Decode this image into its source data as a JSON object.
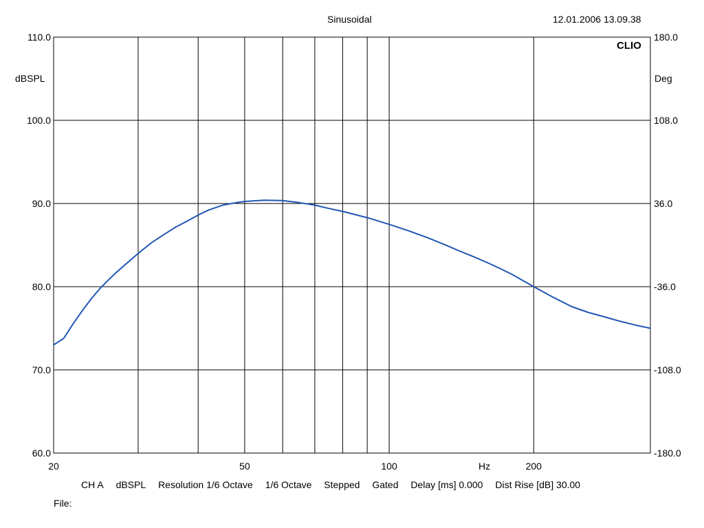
{
  "header": {
    "title": "Sinusoidal",
    "timestamp": "12.01.2006 13.09.38",
    "brand": "CLIO"
  },
  "axes": {
    "left_unit": "dBSPL",
    "right_unit": "Deg",
    "x_unit": "Hz"
  },
  "footer": {
    "channel": "CH A",
    "unit": "dBSPL",
    "resolution": "Resolution 1/6 Octave",
    "octave": "1/6 Octave",
    "mode": "Stepped",
    "gating": "Gated",
    "delay": "Delay [ms] 0.000",
    "dist_rise": "Dist Rise [dB] 30.00",
    "file_label": "File:"
  },
  "chart_data": {
    "type": "line",
    "title": "Sinusoidal",
    "xlabel": "Hz",
    "ylabel": "dBSPL",
    "y2label": "Deg",
    "xscale": "log",
    "xlim": [
      20,
      350
    ],
    "ylim": [
      60,
      110
    ],
    "y2lim": [
      -180,
      180
    ],
    "grid": true,
    "x_ticks": [
      20,
      50,
      100,
      200
    ],
    "x_tick_labels": [
      "20",
      "50",
      "100",
      "200"
    ],
    "x_gridlines": [
      30,
      40,
      50,
      60,
      70,
      80,
      90,
      100,
      200
    ],
    "y_ticks": [
      60,
      70,
      80,
      90,
      100,
      110
    ],
    "y_tick_labels": [
      "60.0",
      "70.0",
      "80.0",
      "90.0",
      "100.0",
      "110.0"
    ],
    "y2_ticks": [
      -180,
      -108,
      -36,
      36,
      108,
      180
    ],
    "y2_tick_labels": [
      "-180.0",
      "-108.0",
      "-36.0",
      "36.0",
      "108.0",
      "180.0"
    ],
    "series": [
      {
        "color": "#1f55b4",
        "x": [
          20,
          21,
          22,
          23,
          24,
          25,
          26,
          27,
          28,
          30,
          32,
          34,
          36,
          38,
          40,
          42,
          45,
          48,
          50,
          55,
          60,
          65,
          70,
          75,
          80,
          90,
          100,
          110,
          120,
          130,
          140,
          150,
          160,
          170,
          180,
          200,
          220,
          240,
          260,
          280,
          300,
          325,
          350
        ],
        "y": [
          73.0,
          73.8,
          75.6,
          77.2,
          78.6,
          79.8,
          80.8,
          81.7,
          82.5,
          84.0,
          85.3,
          86.3,
          87.2,
          87.9,
          88.6,
          89.2,
          89.8,
          90.1,
          90.25,
          90.4,
          90.35,
          90.1,
          89.8,
          89.4,
          89.05,
          88.3,
          87.5,
          86.7,
          85.9,
          85.1,
          84.3,
          83.6,
          82.9,
          82.2,
          81.5,
          80.0,
          78.7,
          77.6,
          76.9,
          76.4,
          75.9,
          75.4,
          75.0
        ]
      }
    ]
  }
}
